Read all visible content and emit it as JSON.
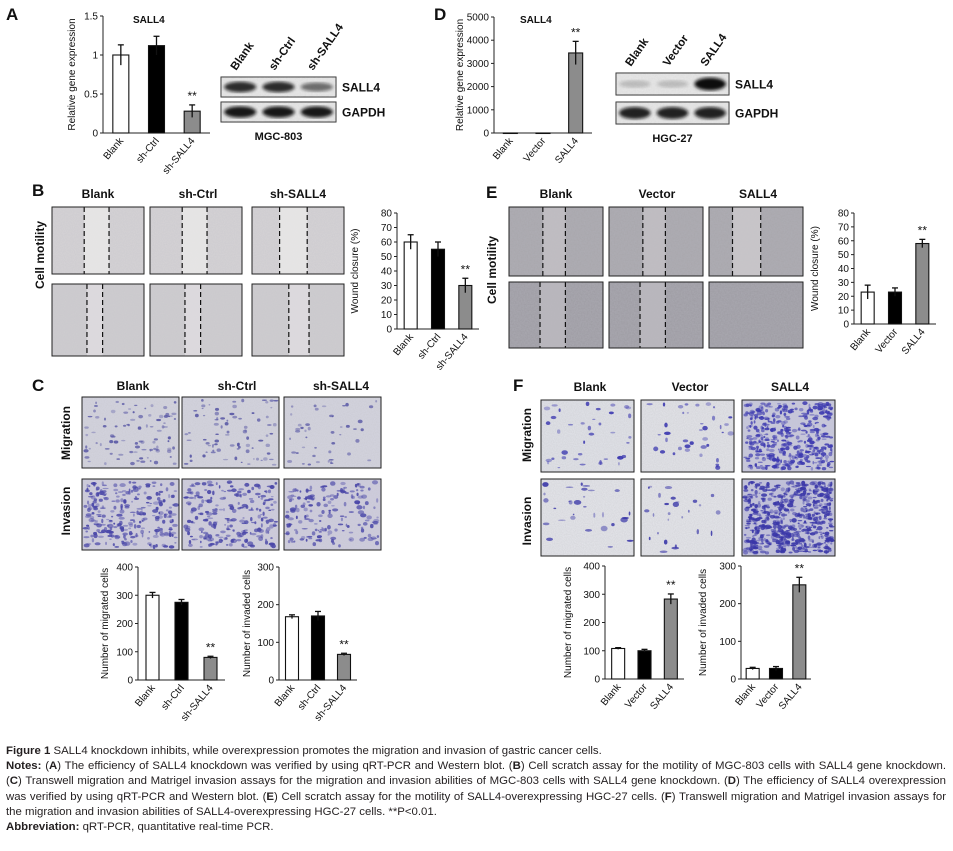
{
  "panels": {
    "A": {
      "letter": "A",
      "qpcr": {
        "title": "SALL4",
        "ylabel": "Relative gene expression",
        "ylim": [
          0,
          1.5
        ],
        "ticks": [
          "0",
          "0.5",
          "1",
          "1.5"
        ],
        "categories": [
          "Blank",
          "sh-Ctrl",
          "sh-SALL4"
        ],
        "values": [
          1.0,
          1.12,
          0.28
        ],
        "errors": [
          0.13,
          0.12,
          0.08
        ],
        "fills": [
          "#ffffff",
          "#000000",
          "#8c8c8c"
        ],
        "sig": [
          "",
          "",
          "**"
        ]
      },
      "blot": {
        "lanes": [
          "Blank",
          "sh-Ctrl",
          "sh-SALL4"
        ],
        "rows": [
          "SALL4",
          "GAPDH"
        ],
        "cell_line": "MGC-803"
      }
    },
    "B": {
      "letter": "B",
      "columns": [
        "Blank",
        "sh-Ctrl",
        "sh-SALL4"
      ],
      "row_label": "Cell motility",
      "chart": {
        "ylabel": "Wound closure (%)",
        "ylim": [
          0,
          80
        ],
        "ticks": [
          "0",
          "10",
          "20",
          "30",
          "40",
          "50",
          "60",
          "70",
          "80"
        ],
        "categories": [
          "Blank",
          "sh-Ctrl",
          "sh-SALL4"
        ],
        "values": [
          60,
          55,
          30
        ],
        "errors": [
          5,
          5,
          5
        ],
        "fills": [
          "#ffffff",
          "#000000",
          "#8c8c8c"
        ],
        "sig": [
          "",
          "",
          "**"
        ]
      }
    },
    "C": {
      "letter": "C",
      "columns": [
        "Blank",
        "sh-Ctrl",
        "sh-SALL4"
      ],
      "rows": [
        "Migration",
        "Invasion"
      ],
      "chart_migrated": {
        "ylabel": "Number of migrated cells",
        "ylim": [
          0,
          400
        ],
        "ticks": [
          "0",
          "100",
          "200",
          "300",
          "400"
        ],
        "categories": [
          "Blank",
          "sh-Ctrl",
          "sh-SALL4"
        ],
        "values": [
          300,
          275,
          80
        ],
        "errors": [
          10,
          10,
          4
        ],
        "fills": [
          "#ffffff",
          "#000000",
          "#8c8c8c"
        ],
        "sig": [
          "",
          "",
          "**"
        ]
      },
      "chart_invaded": {
        "ylabel": "Number of invaded cells",
        "ylim": [
          0,
          300
        ],
        "ticks": [
          "0",
          "100",
          "200",
          "300"
        ],
        "categories": [
          "Blank",
          "sh-Ctrl",
          "sh-SALL4"
        ],
        "values": [
          168,
          170,
          68
        ],
        "errors": [
          5,
          12,
          3
        ],
        "fills": [
          "#ffffff",
          "#000000",
          "#8c8c8c"
        ],
        "sig": [
          "",
          "",
          "**"
        ]
      }
    },
    "D": {
      "letter": "D",
      "qpcr": {
        "title": "SALL4",
        "ylabel": "Relative gene expression",
        "ylim": [
          0,
          5000
        ],
        "ticks": [
          "0",
          "1000",
          "2000",
          "3000",
          "4000",
          "5000"
        ],
        "categories": [
          "Blank",
          "Vector",
          "SALL4"
        ],
        "values": [
          1,
          1,
          3450
        ],
        "errors": [
          0,
          0,
          500
        ],
        "fills": [
          "#ffffff",
          "#000000",
          "#8c8c8c"
        ],
        "sig": [
          "",
          "",
          "**"
        ]
      },
      "blot": {
        "lanes": [
          "Blank",
          "Vector",
          "SALL4"
        ],
        "rows": [
          "SALL4",
          "GAPDH"
        ],
        "cell_line": "HGC-27"
      }
    },
    "E": {
      "letter": "E",
      "columns": [
        "Blank",
        "Vector",
        "SALL4"
      ],
      "row_label": "Cell motility",
      "chart": {
        "ylabel": "Wound closure (%)",
        "ylim": [
          0,
          80
        ],
        "ticks": [
          "0",
          "10",
          "20",
          "30",
          "40",
          "50",
          "60",
          "70",
          "80"
        ],
        "categories": [
          "Blank",
          "Vector",
          "SALL4"
        ],
        "values": [
          23,
          23,
          58
        ],
        "errors": [
          5,
          3,
          3
        ],
        "fills": [
          "#ffffff",
          "#000000",
          "#8c8c8c"
        ],
        "sig": [
          "",
          "",
          "**"
        ]
      }
    },
    "F": {
      "letter": "F",
      "columns": [
        "Blank",
        "Vector",
        "SALL4"
      ],
      "rows": [
        "Migration",
        "Invasion"
      ],
      "chart_migrated": {
        "ylabel": "Number of migrated cells",
        "ylim": [
          0,
          400
        ],
        "ticks": [
          "0",
          "100",
          "200",
          "300",
          "400"
        ],
        "categories": [
          "Blank",
          "Vector",
          "SALL4"
        ],
        "values": [
          108,
          100,
          283
        ],
        "errors": [
          3,
          5,
          18
        ],
        "fills": [
          "#ffffff",
          "#000000",
          "#8c8c8c"
        ],
        "sig": [
          "",
          "",
          "**"
        ]
      },
      "chart_invaded": {
        "ylabel": "Number of invaded cells",
        "ylim": [
          0,
          300
        ],
        "ticks": [
          "0",
          "100",
          "200",
          "300"
        ],
        "categories": [
          "Blank",
          "Vector",
          "SALL4"
        ],
        "values": [
          28,
          28,
          250
        ],
        "errors": [
          3,
          5,
          20
        ],
        "fills": [
          "#ffffff",
          "#000000",
          "#8c8c8c"
        ],
        "sig": [
          "",
          "",
          "**"
        ]
      }
    }
  },
  "chart_data": [
    {
      "type": "bar",
      "title": "SALL4",
      "ylabel": "Relative gene expression",
      "xlabel": "",
      "categories": [
        "Blank",
        "sh-Ctrl",
        "sh-SALL4"
      ],
      "values": [
        1.0,
        1.12,
        0.28
      ],
      "ylim": [
        0,
        1.5
      ]
    },
    {
      "type": "bar",
      "title": "",
      "ylabel": "Wound closure (%)",
      "xlabel": "",
      "categories": [
        "Blank",
        "sh-Ctrl",
        "sh-SALL4"
      ],
      "values": [
        60,
        55,
        30
      ],
      "ylim": [
        0,
        80
      ]
    },
    {
      "type": "bar",
      "title": "",
      "ylabel": "Number of migrated cells",
      "xlabel": "",
      "categories": [
        "Blank",
        "sh-Ctrl",
        "sh-SALL4"
      ],
      "values": [
        300,
        275,
        80
      ],
      "ylim": [
        0,
        400
      ]
    },
    {
      "type": "bar",
      "title": "",
      "ylabel": "Number of invaded cells",
      "xlabel": "",
      "categories": [
        "Blank",
        "sh-Ctrl",
        "sh-SALL4"
      ],
      "values": [
        168,
        170,
        68
      ],
      "ylim": [
        0,
        300
      ]
    },
    {
      "type": "bar",
      "title": "SALL4",
      "ylabel": "Relative gene expression",
      "xlabel": "",
      "categories": [
        "Blank",
        "Vector",
        "SALL4"
      ],
      "values": [
        1,
        1,
        3450
      ],
      "ylim": [
        0,
        5000
      ]
    },
    {
      "type": "bar",
      "title": "",
      "ylabel": "Wound closure (%)",
      "xlabel": "",
      "categories": [
        "Blank",
        "Vector",
        "SALL4"
      ],
      "values": [
        23,
        23,
        58
      ],
      "ylim": [
        0,
        80
      ]
    },
    {
      "type": "bar",
      "title": "",
      "ylabel": "Number of migrated cells",
      "xlabel": "",
      "categories": [
        "Blank",
        "Vector",
        "SALL4"
      ],
      "values": [
        108,
        100,
        283
      ],
      "ylim": [
        0,
        400
      ]
    },
    {
      "type": "bar",
      "title": "",
      "ylabel": "Number of invaded cells",
      "xlabel": "",
      "categories": [
        "Blank",
        "Vector",
        "SALL4"
      ],
      "values": [
        28,
        28,
        250
      ],
      "ylim": [
        0,
        300
      ]
    }
  ],
  "caption": {
    "figure_label": "Figure 1",
    "figure_title": "SALL4 knockdown inhibits, while overexpression promotes the migration and invasion of gastric cancer cells.",
    "notes_label": "Notes:",
    "notes_A_letter": "A",
    "notes_A": "The efficiency of SALL4 knockdown was verified by using qRT-PCR and Western blot.",
    "notes_B_letter": "B",
    "notes_B": "Cell scratch assay for the motility of MGC-803 cells with SALL4 gene knockdown.",
    "notes_C_letter": "C",
    "notes_C": "Transwell migration and Matrigel invasion assays for the migration and invasion abilities of MGC-803 cells with SALL4 gene knockdown.",
    "notes_D_letter": "D",
    "notes_D": "The efficiency of SALL4 overexpression was verified by using qRT-PCR and Western blot.",
    "notes_E_letter": "E",
    "notes_E": "Cell scratch assay for the motility of SALL4-overexpressing HGC-27 cells.",
    "notes_F_letter": "F",
    "notes_F": "Transwell migration and Matrigel invasion assays for the migration and invasion abilities of SALL4-overexpressing HGC-27 cells.",
    "significance": "**P<0.01.",
    "abbrev_label": "Abbreviation:",
    "abbrev_text": "qRT-PCR, quantitative real-time PCR."
  }
}
